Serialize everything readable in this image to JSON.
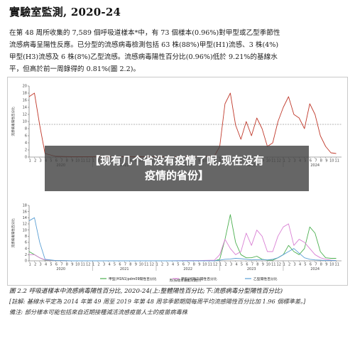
{
  "document": {
    "title": "實驗室監測, 2020-24",
    "paragraph_lines": [
      "在第 48 周所收集的 7,589 個呼吸道樣本*中，有 73 個樣本(0.96%)對甲型或乙型季節性",
      "流感病毒呈陽性反應。已分型的流感病毒檢測包括 63 株(88%)甲型(H1)流感、3 株(4%)",
      "甲型(H3)流感及 6 株(8%)乙型流感。流感病毒陽性百分比(0.96%)低於 9.21%的基線水",
      "平，但高於前一周錄得的 0.81%(圖 2.2)。"
    ],
    "caption": "圖 2.2  呼吸道樣本中流感病毒陽性百分比, 2020-24(上:整體陽性百分比;下:流感病毒分型陽性百分比)",
    "note_1": "[註解: 基線水平定為 2014 年第 49 周至 2019 年第 48 周非季節期間每周平均流感陽性百分比加 1.96 個標準差。]",
    "note_2": "備注: 部分樣本可能包括來自近期接種減活流感疫苗人士的疫苗病毒株"
  },
  "overlay": {
    "line_1": "【现有几个省没有疫情了呢,现在没有",
    "line_2": "疫情的省份】"
  },
  "charts_text": {
    "year_labels": [
      "2020",
      "2021",
      "2022",
      "2023",
      "2024"
    ],
    "month_ticks": [
      "1",
      "2",
      "3",
      "4",
      "5",
      "6",
      "7",
      "8",
      "9",
      "10",
      "11",
      "12"
    ],
    "x_axis_title": "周(按樣本收集日期計)",
    "top_y_title": "流感病毒陽性百分比",
    "bottom_y_title": "流感病毒陽性百分比"
  },
  "chart_data": [
    {
      "type": "line",
      "title": "",
      "ylabel": "流感病毒陽性百分比",
      "xlabel": "",
      "ylim": [
        0,
        20
      ],
      "yticks": [
        0,
        2,
        4,
        6,
        8,
        10,
        12,
        14,
        16,
        18,
        20
      ],
      "x": [
        "2020-01",
        "2020-02",
        "2020-03",
        "2020-04",
        "2020-06",
        "2020-09",
        "2020-12",
        "2021-03",
        "2021-06",
        "2021-09",
        "2021-12",
        "2022-03",
        "2022-06",
        "2022-09",
        "2022-12",
        "2023-01",
        "2023-02",
        "2023-03",
        "2023-04",
        "2023-05",
        "2023-06",
        "2023-07",
        "2023-08",
        "2023-09",
        "2023-10",
        "2023-11",
        "2023-12",
        "2024-01",
        "2024-02",
        "2024-03",
        "2024-04",
        "2024-05",
        "2024-06",
        "2024-07",
        "2024-08",
        "2024-09",
        "2024-10",
        "2024-11"
      ],
      "series": [
        {
          "values": [
            17,
            18,
            9,
            1,
            0.2,
            0.1,
            0.1,
            0.1,
            0.1,
            0.1,
            0.1,
            0.1,
            0.1,
            0.2,
            0.3,
            3,
            15,
            18,
            9,
            5,
            10,
            6,
            11,
            8,
            3,
            4,
            10,
            14,
            17,
            12,
            11,
            8,
            15,
            12,
            6,
            3,
            1.2,
            1
          ]
        }
      ],
      "baseline_dashed": 9.2,
      "grid": false,
      "legend": "none"
    },
    {
      "type": "line",
      "title": "",
      "ylabel": "流感病毒陽性百分比",
      "xlabel": "周(按樣本收集日期計)",
      "ylim": [
        0,
        18
      ],
      "yticks": [
        0,
        2,
        4,
        6,
        8,
        10,
        12,
        14,
        16,
        18
      ],
      "x": [
        "2020-01",
        "2020-02",
        "2020-03",
        "2020-04",
        "2020-06",
        "2020-09",
        "2020-12",
        "2021-03",
        "2021-06",
        "2021-09",
        "2021-12",
        "2022-03",
        "2022-06",
        "2022-09",
        "2022-12",
        "2023-01",
        "2023-02",
        "2023-03",
        "2023-04",
        "2023-05",
        "2023-06",
        "2023-07",
        "2023-08",
        "2023-09",
        "2023-10",
        "2023-11",
        "2023-12",
        "2024-01",
        "2024-02",
        "2024-03",
        "2024-04",
        "2024-05",
        "2024-06",
        "2024-07",
        "2024-08",
        "2024-09",
        "2024-10",
        "2024-11"
      ],
      "series": [
        {
          "name": "甲型(H1N1)pdm09陽性百分比",
          "color": "#4caf50",
          "values": [
            3,
            2,
            1,
            0.2,
            0.1,
            0,
            0,
            0,
            0,
            0,
            0,
            0,
            0,
            0,
            0,
            0.5,
            7,
            15,
            6,
            2,
            1,
            1,
            1.5,
            0.5,
            0.2,
            0.2,
            1,
            2,
            5,
            3,
            2,
            4,
            11,
            9,
            3,
            1,
            0.8,
            0.8
          ]
        },
        {
          "name": "甲型(H3N2)陽性百分比",
          "color": "#d980d4",
          "values": [
            2,
            2,
            1,
            0.3,
            0.1,
            0,
            0,
            0,
            0,
            0,
            0,
            0,
            0.1,
            0.1,
            0.2,
            2,
            7,
            4,
            2,
            3,
            9,
            5,
            10,
            8,
            3,
            3,
            8,
            11,
            12,
            5,
            7,
            6,
            4,
            2,
            1,
            0.5,
            0.2,
            0.1
          ]
        },
        {
          "name": "乙型陽性百分比",
          "color": "#5a9fd4",
          "values": [
            13,
            14,
            6,
            0.5,
            0.1,
            0,
            0,
            0,
            0,
            0,
            0,
            0,
            0,
            0,
            0,
            0.2,
            0.5,
            0.6,
            0.8,
            0.7,
            0.5,
            0.3,
            0.4,
            0.4,
            0.3,
            0.5,
            1,
            2,
            3,
            4,
            2.5,
            1,
            0.5,
            0.3,
            0.2,
            0.1,
            0.1,
            0.1
          ]
        }
      ],
      "grid": false,
      "legend": "bottom"
    }
  ]
}
